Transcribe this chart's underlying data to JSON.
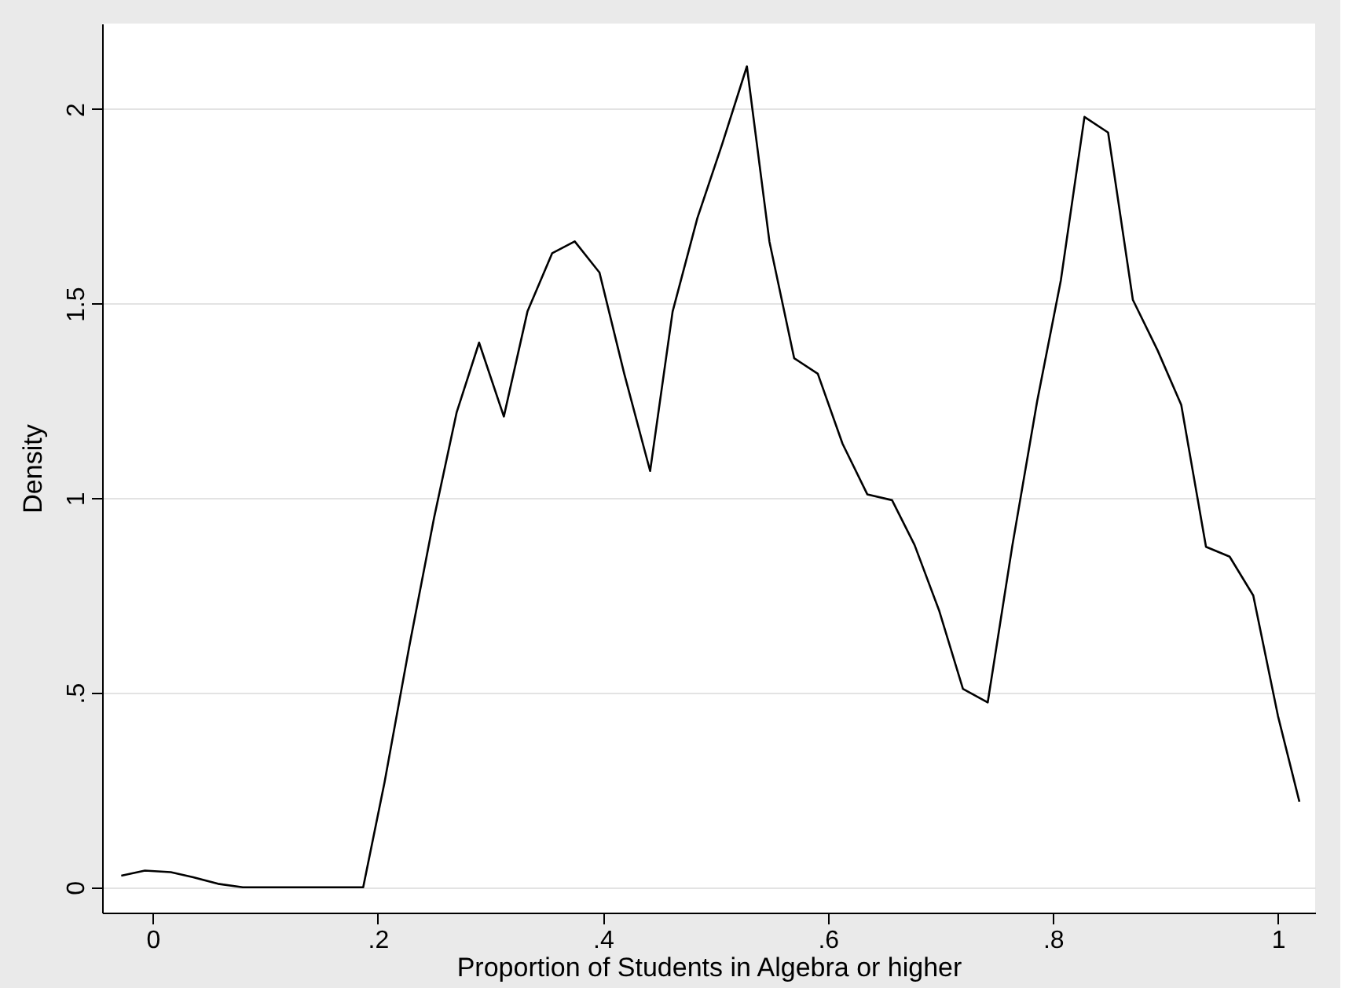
{
  "chart_data": {
    "type": "line",
    "xlabel": "Proportion of Students in Algebra or higher",
    "ylabel": "Density",
    "x": [
      -0.028,
      -0.007,
      0.016,
      0.036,
      0.058,
      0.08,
      0.101,
      0.123,
      0.144,
      0.166,
      0.187,
      0.206,
      0.228,
      0.25,
      0.27,
      0.29,
      0.312,
      0.333,
      0.355,
      0.375,
      0.397,
      0.419,
      0.442,
      0.462,
      0.484,
      0.506,
      0.528,
      0.548,
      0.57,
      0.591,
      0.613,
      0.635,
      0.657,
      0.677,
      0.699,
      0.72,
      0.742,
      0.764,
      0.786,
      0.807,
      0.828,
      0.849,
      0.871,
      0.893,
      0.914,
      0.936,
      0.957,
      0.978,
      1.0,
      1.019
    ],
    "series": [
      {
        "color": "#000000",
        "values": [
          0.03,
          0.043,
          0.039,
          0.026,
          0.009,
          0,
          0,
          0,
          0,
          0,
          0,
          0.27,
          0.62,
          0.95,
          1.22,
          1.4,
          1.21,
          1.48,
          1.63,
          1.66,
          1.58,
          1.32,
          1.07,
          1.48,
          1.72,
          1.91,
          2.11,
          1.66,
          1.36,
          1.32,
          1.14,
          1.01,
          0.995,
          0.88,
          0.71,
          0.51,
          0.475,
          0.88,
          1.25,
          1.56,
          1.98,
          1.94,
          1.51,
          1.38,
          1.24,
          0.875,
          0.85,
          0.75,
          0.44,
          0.22
        ]
      }
    ],
    "xlim": [
      -0.045,
      1.033
    ],
    "ylim": [
      -0.065,
      2.22
    ],
    "xticks": [
      0,
      {
        "value": 0.2,
        "label": ".2"
      },
      {
        "value": 0.4,
        "label": ".4"
      },
      {
        "value": 0.6,
        "label": ".6"
      },
      {
        "value": 0.8,
        "label": ".8"
      },
      1
    ],
    "yticks": [
      0,
      {
        "value": 0.5,
        "label": ".5"
      },
      1,
      1.5,
      2
    ],
    "grid": "y",
    "marker": "none",
    "line_style": "solid"
  }
}
